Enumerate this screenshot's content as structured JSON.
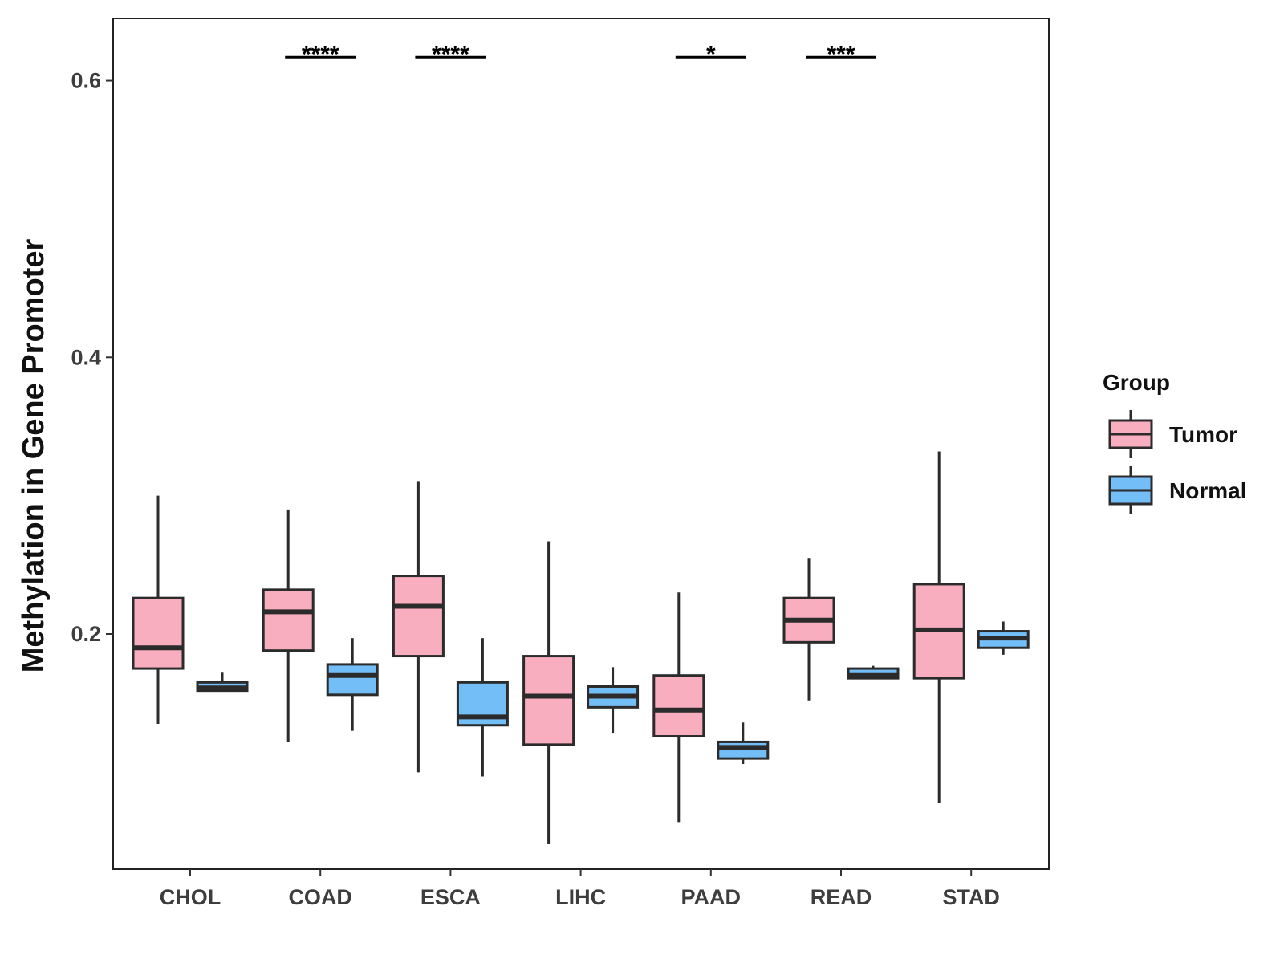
{
  "chart_data": {
    "type": "boxplot",
    "title": "",
    "xlabel": "",
    "ylabel": "Methylation in Gene Promoter",
    "ylim": [
      0.03,
      0.645
    ],
    "yticks": [
      0.2,
      0.4,
      0.6
    ],
    "ytick_labels": [
      "0.2",
      "0.4",
      "0.6"
    ],
    "grid": false,
    "legend": {
      "title": "Group",
      "position": "right",
      "entries": [
        {
          "name": "Tumor",
          "color": "#F9AEC0"
        },
        {
          "name": "Normal",
          "color": "#74BEF8"
        }
      ]
    },
    "categories": [
      "CHOL",
      "COAD",
      "ESCA",
      "LIHC",
      "PAAD",
      "READ",
      "STAD"
    ],
    "series": [
      {
        "name": "Tumor",
        "color": "#F9AEC0",
        "boxes": [
          {
            "min": 0.135,
            "q1": 0.175,
            "median": 0.19,
            "q3": 0.226,
            "max": 0.3
          },
          {
            "min": 0.122,
            "q1": 0.188,
            "median": 0.216,
            "q3": 0.232,
            "max": 0.29
          },
          {
            "min": 0.1,
            "q1": 0.184,
            "median": 0.22,
            "q3": 0.242,
            "max": 0.31
          },
          {
            "min": 0.048,
            "q1": 0.12,
            "median": 0.155,
            "q3": 0.184,
            "max": 0.267
          },
          {
            "min": 0.064,
            "q1": 0.126,
            "median": 0.145,
            "q3": 0.17,
            "max": 0.23
          },
          {
            "min": 0.152,
            "q1": 0.194,
            "median": 0.21,
            "q3": 0.226,
            "max": 0.255
          },
          {
            "min": 0.078,
            "q1": 0.168,
            "median": 0.203,
            "q3": 0.236,
            "max": 0.332
          }
        ]
      },
      {
        "name": "Normal",
        "color": "#74BEF8",
        "boxes": [
          {
            "min": 0.159,
            "q1": 0.159,
            "median": 0.161,
            "q3": 0.165,
            "max": 0.172
          },
          {
            "min": 0.13,
            "q1": 0.156,
            "median": 0.17,
            "q3": 0.178,
            "max": 0.197
          },
          {
            "min": 0.097,
            "q1": 0.134,
            "median": 0.14,
            "q3": 0.165,
            "max": 0.197
          },
          {
            "min": 0.128,
            "q1": 0.147,
            "median": 0.155,
            "q3": 0.162,
            "max": 0.176
          },
          {
            "min": 0.106,
            "q1": 0.11,
            "median": 0.118,
            "q3": 0.122,
            "max": 0.136
          },
          {
            "min": 0.168,
            "q1": 0.168,
            "median": 0.17,
            "q3": 0.175,
            "max": 0.177
          },
          {
            "min": 0.185,
            "q1": 0.19,
            "median": 0.197,
            "q3": 0.202,
            "max": 0.209
          }
        ]
      }
    ],
    "significance": [
      {
        "category": "CHOL",
        "label": ""
      },
      {
        "category": "COAD",
        "label": "****"
      },
      {
        "category": "ESCA",
        "label": "****"
      },
      {
        "category": "LIHC",
        "label": ""
      },
      {
        "category": "PAAD",
        "label": "*"
      },
      {
        "category": "READ",
        "label": "***"
      },
      {
        "category": "STAD",
        "label": ""
      }
    ],
    "significance_y": 0.617
  },
  "colors": {
    "outline": "#2b2b2b",
    "tumor": "#F9AEC0",
    "normal": "#74BEF8"
  }
}
